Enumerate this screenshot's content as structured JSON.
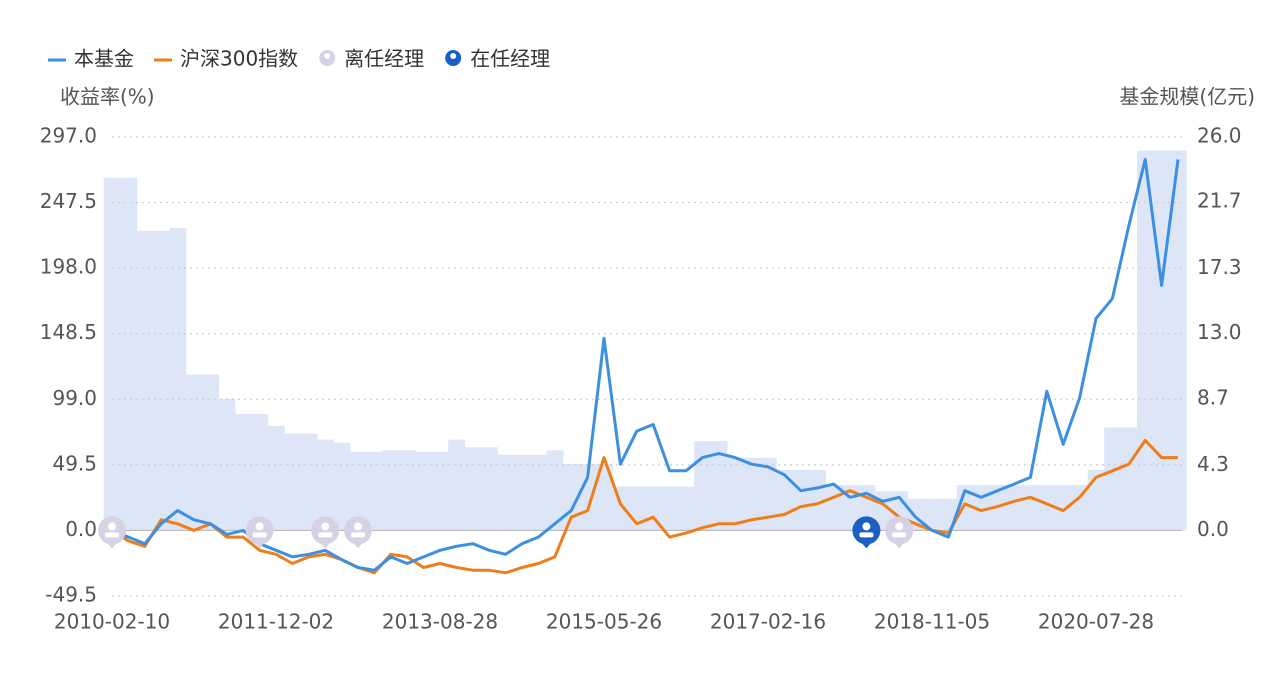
{
  "chart_data": {
    "type": "line",
    "y_axis_label": "收益率(%)",
    "y2_axis_label": "基金规模(亿元)",
    "categories": [
      "2010-02-10",
      null,
      null,
      null,
      null,
      null,
      null,
      null,
      null,
      null,
      "2011-12-02",
      null,
      null,
      null,
      null,
      null,
      null,
      null,
      null,
      null,
      "2013-08-28",
      null,
      null,
      null,
      null,
      null,
      null,
      null,
      null,
      null,
      "2015-05-26",
      null,
      null,
      null,
      null,
      null,
      null,
      null,
      null,
      null,
      "2017-02-16",
      null,
      null,
      null,
      null,
      null,
      null,
      null,
      null,
      null,
      "2018-11-05",
      null,
      null,
      null,
      null,
      null,
      null,
      null,
      null,
      null,
      "2020-07-28",
      null,
      null,
      null,
      null,
      null
    ],
    "series": [
      {
        "name": "本基金",
        "type": "line",
        "color": "#3d8fe0",
        "values": [
          0,
          -5,
          -10,
          5,
          15,
          8,
          5,
          -3,
          0,
          -10,
          -15,
          -20,
          -18,
          -15,
          -22,
          -28,
          -30,
          -20,
          -25,
          -20,
          -15,
          -12,
          -10,
          -15,
          -18,
          -10,
          -5,
          5,
          15,
          40,
          145,
          50,
          75,
          80,
          45,
          45,
          55,
          58,
          55,
          50,
          48,
          42,
          30,
          32,
          35,
          25,
          28,
          22,
          25,
          10,
          0,
          -5,
          30,
          25,
          30,
          35,
          40,
          105,
          65,
          100,
          160,
          175,
          230,
          280,
          185,
          280
        ]
      },
      {
        "name": "沪深300指数",
        "type": "line",
        "color": "#ef7d1a",
        "values": [
          0,
          -8,
          -12,
          8,
          5,
          0,
          5,
          -5,
          -5,
          -15,
          -18,
          -25,
          -20,
          -18,
          -22,
          -28,
          -32,
          -18,
          -20,
          -28,
          -25,
          -28,
          -30,
          -30,
          -32,
          -28,
          -25,
          -20,
          10,
          15,
          55,
          20,
          5,
          10,
          -5,
          -2,
          2,
          5,
          5,
          8,
          10,
          12,
          18,
          20,
          25,
          30,
          25,
          20,
          10,
          5,
          0,
          -2,
          20,
          15,
          18,
          22,
          25,
          20,
          15,
          25,
          40,
          45,
          50,
          68,
          55,
          55
        ]
      },
      {
        "name": "基金规模(亿元)",
        "type": "bar",
        "axis": "y2",
        "color": "#dce6f7",
        "values": [
          23.3,
          23.3,
          19.8,
          19.8,
          20.0,
          10.3,
          10.3,
          8.7,
          7.7,
          7.7,
          6.9,
          6.4,
          6.4,
          6.0,
          5.8,
          5.2,
          5.2,
          5.3,
          5.3,
          5.2,
          5.2,
          6.0,
          5.5,
          5.5,
          5.0,
          5.0,
          5.0,
          5.3,
          4.4,
          4.4,
          4.4,
          2.9,
          2.9,
          2.9,
          2.9,
          2.9,
          5.9,
          5.9,
          4.8,
          4.8,
          4.8,
          4.0,
          4.0,
          4.0,
          3.0,
          3.0,
          3.0,
          2.6,
          2.6,
          2.1,
          2.1,
          2.1,
          3.0,
          3.0,
          3.0,
          3.0,
          3.0,
          3.0,
          3.0,
          3.0,
          4.0,
          6.8,
          6.8,
          25.1,
          25.1,
          25.1
        ]
      }
    ],
    "events": [
      {
        "name": "离任经理",
        "color": "#d6d2e6",
        "x": [
          0,
          9,
          13,
          15,
          48
        ]
      },
      {
        "name": "在任经理",
        "color": "#1b5fc6",
        "x": [
          46
        ]
      }
    ],
    "ylim": [
      -49.5,
      297
    ],
    "yticks": [
      -49.5,
      {
        "value": 0,
        "label": "0.0"
      },
      49.5,
      {
        "value": 99,
        "label": "99.0"
      },
      148.5,
      {
        "value": 198,
        "label": "198.0"
      },
      247.5,
      {
        "value": 297,
        "label": "297.0"
      }
    ],
    "y2lim": [
      -4.33,
      26
    ],
    "y2ticks": [
      {
        "value": 0,
        "label": "0.0"
      },
      4.3,
      8.7,
      {
        "value": 13,
        "label": "13.0"
      },
      17.3,
      21.7,
      {
        "value": 26,
        "label": "26.0"
      }
    ],
    "grid": true
  }
}
